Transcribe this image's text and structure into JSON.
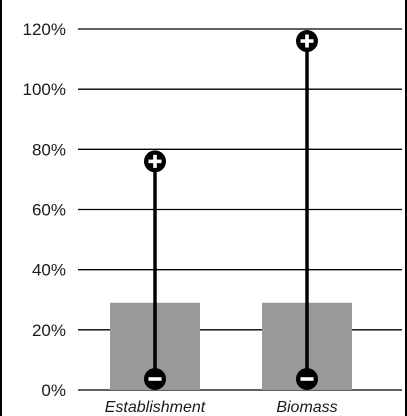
{
  "chart_data": {
    "type": "bar",
    "categories": [
      "Establishment",
      "Biomass"
    ],
    "values": [
      29,
      29
    ],
    "ranges": [
      {
        "category": "Establishment",
        "low": 0,
        "high": 76
      },
      {
        "category": "Biomass",
        "low": 0,
        "high": 116
      }
    ],
    "range_markers": {
      "high": "plus-icon",
      "low": "minus-icon"
    },
    "ylim": [
      0,
      120
    ],
    "yticks": [
      0,
      20,
      40,
      60,
      80,
      100,
      120
    ],
    "ytick_format": "percent",
    "grid": true,
    "colors": {
      "bar": "#999999",
      "range_line": "#000000",
      "grid": "#000000",
      "marker_fill": "#000000",
      "marker_symbol": "#ffffff"
    },
    "title": "",
    "xlabel": "",
    "ylabel": ""
  }
}
